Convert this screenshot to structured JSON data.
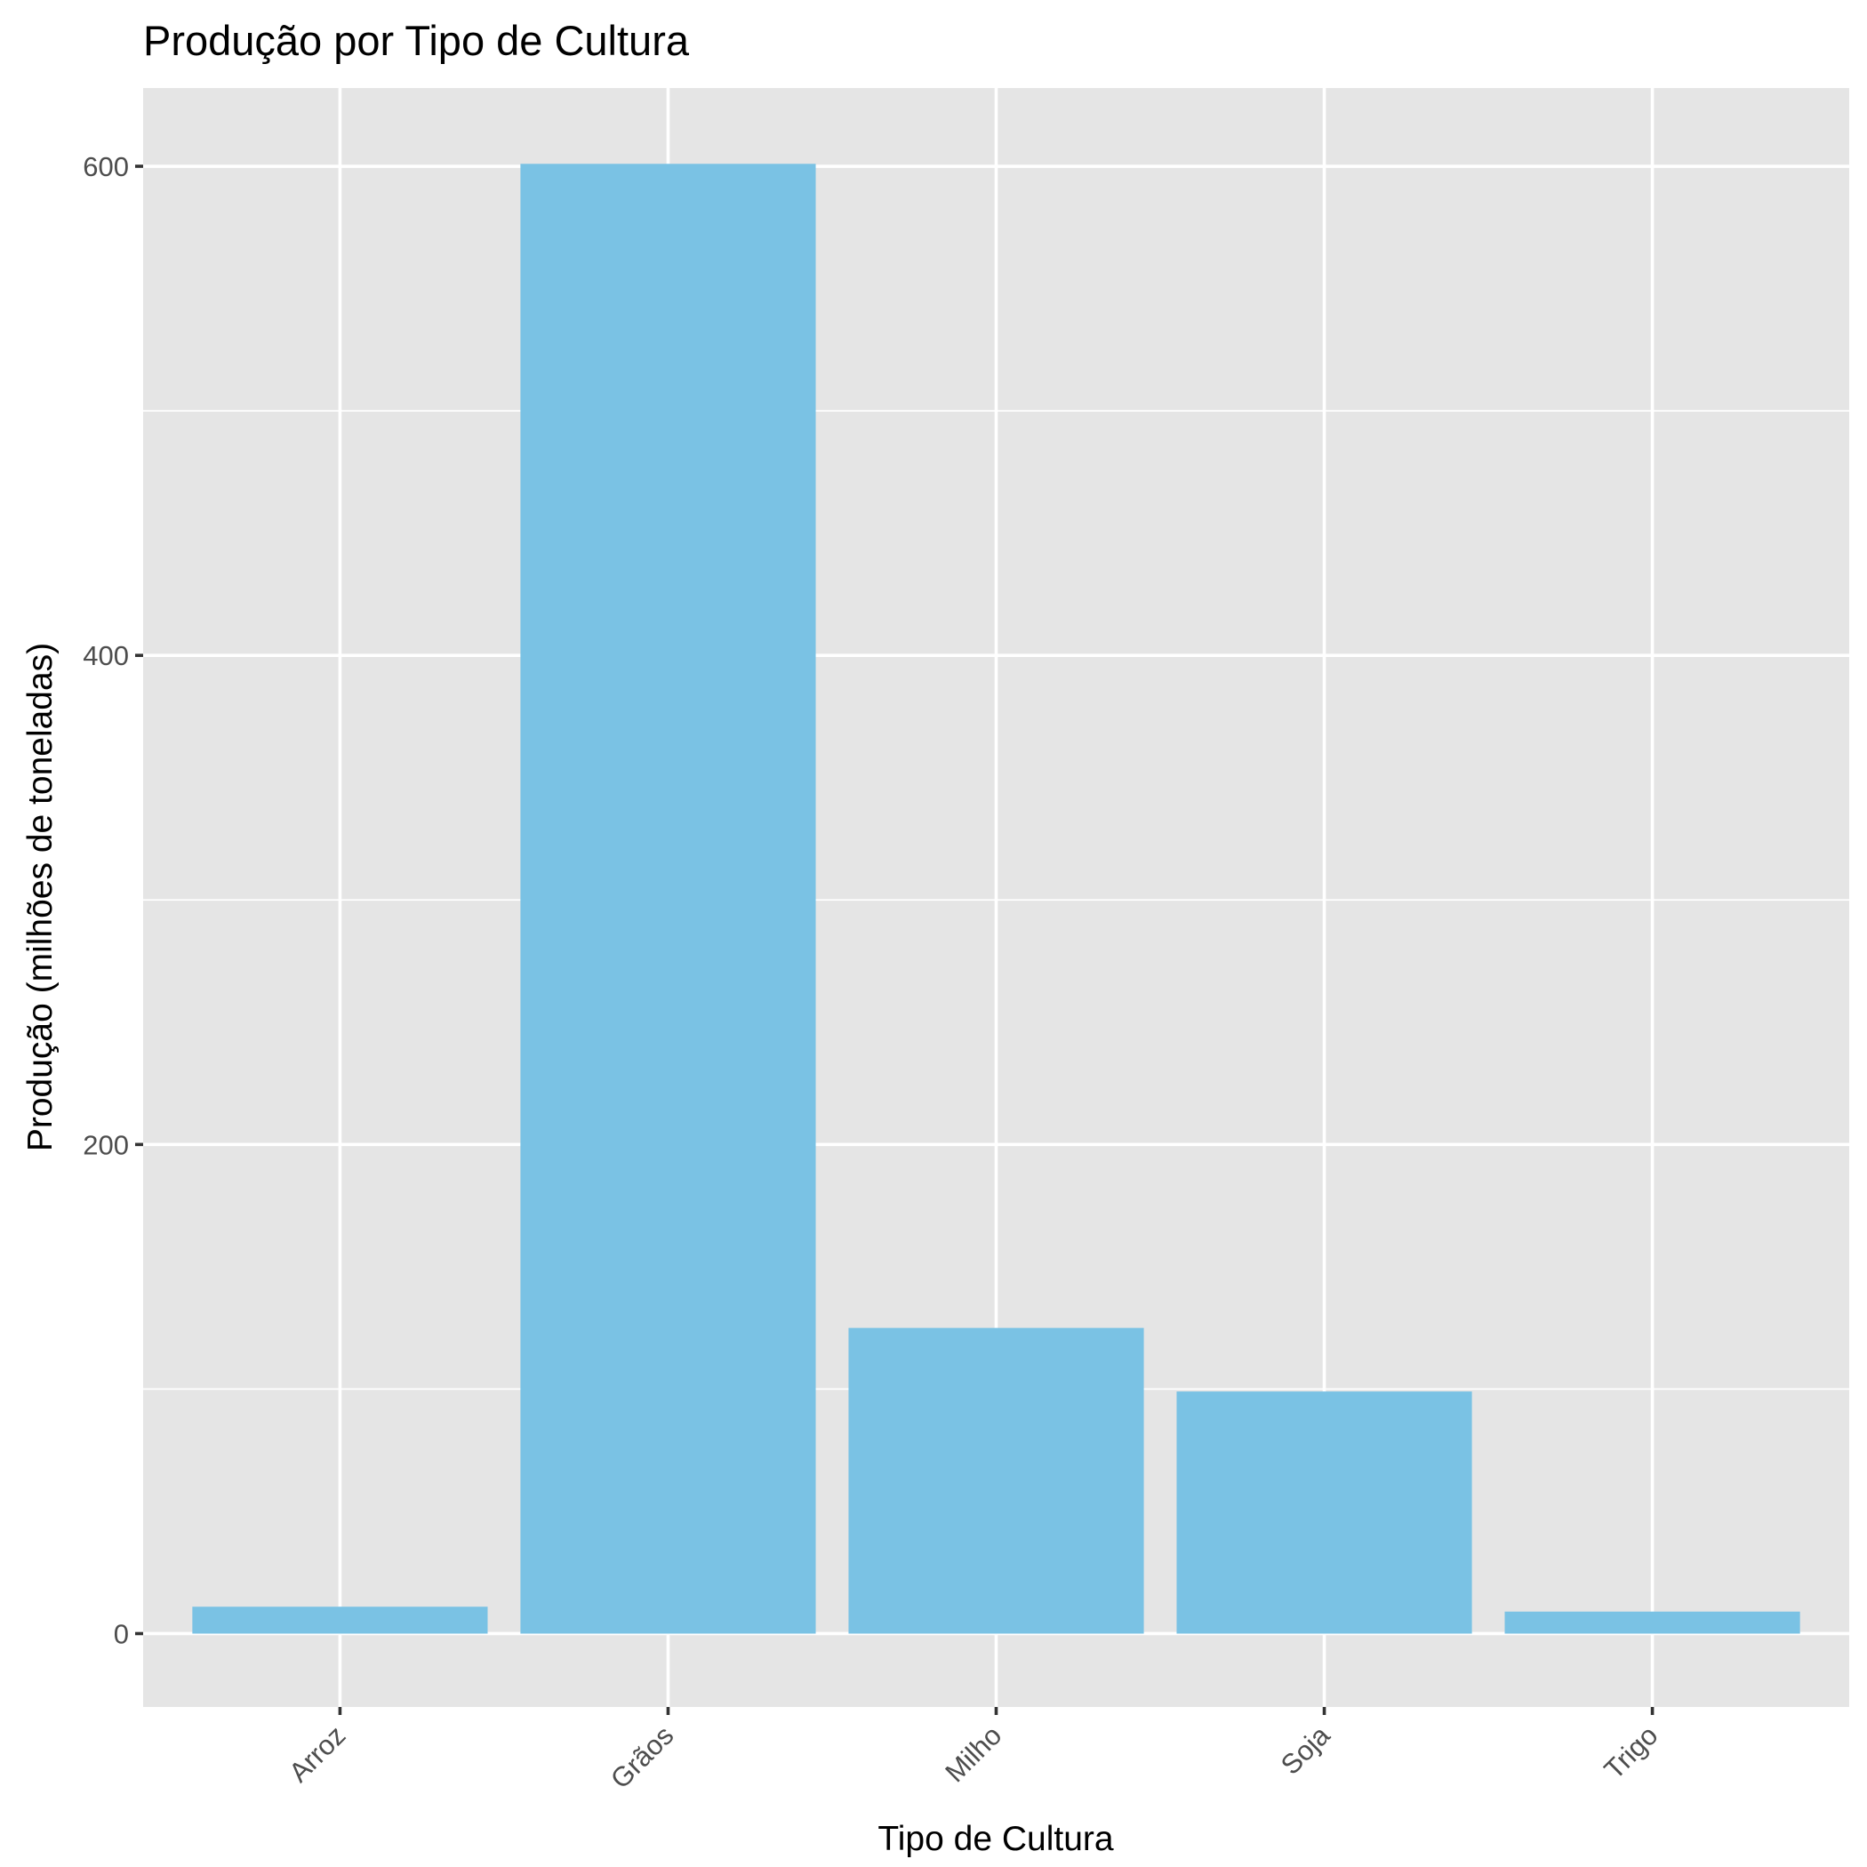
{
  "chart_data": {
    "type": "bar",
    "title": "Produção por Tipo de Cultura",
    "xlabel": "Tipo de Cultura",
    "ylabel": "Produção (milhões de toneladas)",
    "categories": [
      "Arroz",
      "Grãos",
      "Milho",
      "Soja",
      "Trigo"
    ],
    "values": [
      11,
      601,
      125,
      99,
      9
    ],
    "ylim": [
      -30,
      632
    ],
    "yticks": [
      0,
      200,
      400,
      600
    ],
    "y_minor_ticks": [
      100,
      300,
      500
    ],
    "grid": true,
    "legend": "none",
    "colors": {
      "bar": "#7ac2e4",
      "panel": "#e5e5e5",
      "grid": "#ffffff"
    }
  }
}
